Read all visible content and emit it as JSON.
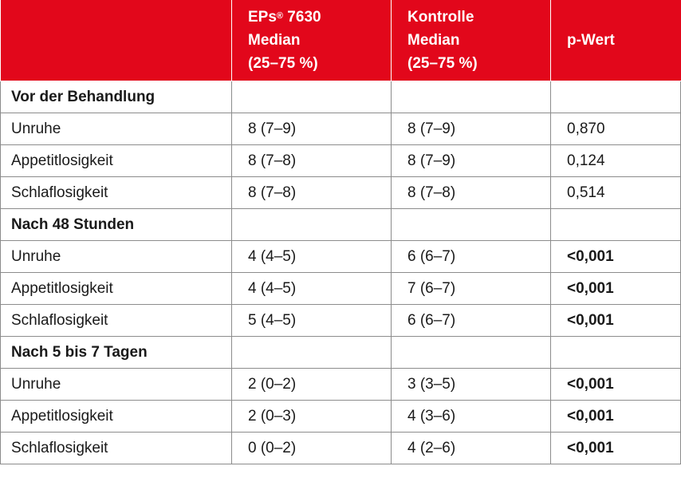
{
  "header": {
    "col1": "",
    "col2": {
      "line1": "EPs",
      "sup": "®",
      "line1_rest": " 7630",
      "line2": "Median",
      "line3": "(25–75 %)"
    },
    "col3": {
      "line1": "Kontrolle",
      "line2": "Median",
      "line3": "(25–75 %)"
    },
    "col4": "p-Wert"
  },
  "rows": [
    {
      "type": "section",
      "label": "Vor der Behandlung"
    },
    {
      "type": "data",
      "label": "Unruhe",
      "eps": "8 (7–9)",
      "kontrolle": "8 (7–9)",
      "p": "0,870",
      "sig": false
    },
    {
      "type": "data",
      "label": "Appetitlosigkeit",
      "eps": "8 (7–8)",
      "kontrolle": "8 (7–9)",
      "p": "0,124",
      "sig": false
    },
    {
      "type": "data",
      "label": "Schlaflosigkeit",
      "eps": "8 (7–8)",
      "kontrolle": "8 (7–8)",
      "p": "0,514",
      "sig": false
    },
    {
      "type": "section",
      "label": "Nach 48 Stunden"
    },
    {
      "type": "data",
      "label": "Unruhe",
      "eps": "4 (4–5)",
      "kontrolle": "6 (6–7)",
      "p": "<0,001",
      "sig": true
    },
    {
      "type": "data",
      "label": "Appetitlosigkeit",
      "eps": "4 (4–5)",
      "kontrolle": "7 (6–7)",
      "p": "<0,001",
      "sig": true
    },
    {
      "type": "data",
      "label": "Schlaflosigkeit",
      "eps": "5 (4–5)",
      "kontrolle": "6 (6–7)",
      "p": "<0,001",
      "sig": true
    },
    {
      "type": "section",
      "label": "Nach 5 bis 7 Tagen"
    },
    {
      "type": "data",
      "label": "Unruhe",
      "eps": "2 (0–2)",
      "kontrolle": "3 (3–5)",
      "p": "<0,001",
      "sig": true
    },
    {
      "type": "data",
      "label": "Appetitlosigkeit",
      "eps": "2 (0–3)",
      "kontrolle": "4 (3–6)",
      "p": "<0,001",
      "sig": true
    },
    {
      "type": "data",
      "label": "Schlaflosigkeit",
      "eps": "0 (0–2)",
      "kontrolle": "4 (2–6)",
      "p": "<0,001",
      "sig": true
    }
  ],
  "colors": {
    "header_bg": "#e2071b",
    "header_text": "#ffffff",
    "border": "#8c8c8c"
  }
}
